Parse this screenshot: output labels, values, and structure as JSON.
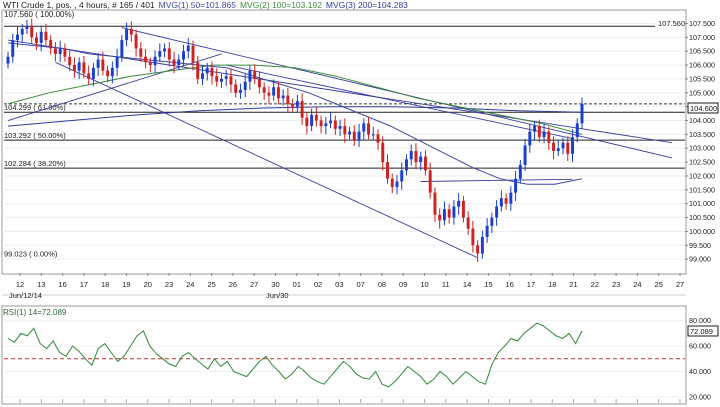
{
  "header": {
    "title": "WTI Crude 1, pos. , 4 hours, # 165 / 401",
    "mvg1": "MVG(1) 50=101.865",
    "mvg2": "MVG(2) 100=103.192",
    "mvg3": "MVG(3) 200=104.283",
    "fib_top": "107.560 ( 100.00%)",
    "top_right_label": "107.560"
  },
  "colors": {
    "candle_up": "#1a3fd0",
    "candle_down": "#d02020",
    "mvg1": "#3d47a8",
    "mvg2": "#3c8a3c",
    "mvg3": "#2e3a9e",
    "trendline": "#3a3f9e",
    "hline": "#222222",
    "rsi_line": "#2f8a3a",
    "rsi_mid": "#c03030",
    "current_box": "#1a1a1a"
  },
  "chart_data": [
    {
      "type": "candlestick",
      "title": "",
      "timeframe": "4 hours",
      "ylim": [
        98.5,
        107.95
      ],
      "y_ticks": [
        "99.000",
        "99.500",
        "100.000",
        "100.500",
        "101.000",
        "101.500",
        "102.000",
        "102.500",
        "103.000",
        "103.500",
        "104.000",
        "104.500",
        "105.000",
        "105.500",
        "106.000",
        "106.500",
        "107.000",
        "107.500"
      ],
      "x_ticks": [
        "12",
        "13",
        "16",
        "17",
        "18",
        "19",
        "20",
        "23",
        "24",
        "25",
        "26",
        "27",
        "30",
        "01",
        "02",
        "03",
        "07",
        "08",
        "09",
        "10",
        "11",
        "14",
        "15",
        "16",
        "17",
        "18",
        "21",
        "22",
        "23",
        "24",
        "25",
        "27"
      ],
      "date_labels": [
        "Jun/12/14",
        "Jun/30"
      ],
      "current_price": "104.600",
      "fibonacci": [
        {
          "label": "107.560 ( 100.00%)",
          "value": 107.56
        },
        {
          "label": "104.299 ( 61.80%)",
          "value": 104.299
        },
        {
          "label": "103.292 ( 50.00%)",
          "value": 103.292
        },
        {
          "label": "102.284 ( 38.20%)",
          "value": 102.284
        },
        {
          "label": "99.023 ( 0.00%)",
          "value": 99.023
        }
      ],
      "horizontal_lines": [
        107.4,
        104.299,
        103.292,
        102.284
      ],
      "dashed_line": 104.6,
      "closes": [
        106.3,
        106.9,
        107.1,
        107.3,
        107.4,
        107.0,
        106.8,
        107.2,
        106.9,
        106.6,
        106.4,
        106.6,
        106.3,
        106.0,
        105.8,
        106.1,
        105.7,
        105.5,
        105.9,
        106.2,
        105.8,
        105.6,
        105.9,
        106.3,
        106.9,
        107.3,
        107.1,
        106.6,
        106.3,
        106.1,
        106.0,
        106.3,
        106.5,
        106.6,
        106.2,
        106.0,
        106.2,
        106.5,
        106.7,
        106.1,
        105.5,
        105.7,
        105.9,
        105.6,
        105.4,
        105.5,
        105.6,
        105.3,
        105.0,
        105.1,
        105.4,
        105.8,
        105.5,
        105.2,
        105.0,
        104.9,
        105.2,
        104.8,
        104.9,
        104.6,
        104.5,
        104.7,
        104.1,
        103.8,
        104.2,
        104.0,
        103.8,
        103.9,
        104.0,
        103.7,
        103.8,
        103.5,
        103.6,
        103.3,
        103.6,
        103.9,
        103.5,
        103.5,
        103.2,
        102.5,
        101.9,
        101.6,
        101.8,
        102.2,
        102.6,
        102.9,
        102.5,
        102.7,
        102.2,
        101.4,
        100.6,
        100.4,
        100.8,
        100.5,
        100.9,
        101.1,
        100.5,
        100.1,
        99.5,
        99.2,
        99.8,
        100.2,
        100.5,
        100.9,
        101.2,
        101.0,
        101.4,
        101.9,
        102.4,
        103.1,
        103.6,
        103.8,
        103.4,
        103.6,
        103.2,
        102.9,
        103.0,
        103.2,
        102.8,
        103.4,
        103.9,
        104.6
      ],
      "mvg1_50": [
        106.8,
        106.7,
        106.6,
        106.4,
        106.3,
        106.2,
        106.1,
        106.0,
        105.9,
        105.6,
        105.3,
        105.0,
        104.6,
        104.2,
        103.8,
        103.3,
        102.8,
        102.3,
        101.9,
        101.7,
        101.7,
        101.9
      ],
      "mvg2_100": [
        104.6,
        105.0,
        105.3,
        105.6,
        105.8,
        106.0,
        106.0,
        105.9,
        105.6,
        105.2,
        104.8,
        104.5,
        104.2,
        103.9,
        103.5
      ],
      "mvg3_200": [
        103.8,
        104.0,
        104.2,
        104.35,
        104.45,
        104.5,
        104.5,
        104.45,
        104.35,
        104.3
      ]
    },
    {
      "type": "line",
      "title": "",
      "label": "RSI(1) 14=72.089",
      "current_value": "72.089",
      "ylim": [
        16,
        90
      ],
      "y_ticks": [
        "80.000",
        "60.000",
        "40.000",
        "20.000"
      ],
      "midline": 50,
      "values": [
        66,
        63,
        70,
        68,
        74,
        62,
        58,
        64,
        55,
        52,
        60,
        56,
        50,
        45,
        58,
        62,
        55,
        48,
        52,
        60,
        68,
        72,
        60,
        54,
        50,
        46,
        44,
        52,
        55,
        50,
        46,
        42,
        50,
        44,
        48,
        40,
        38,
        36,
        42,
        48,
        52,
        45,
        40,
        34,
        38,
        44,
        40,
        35,
        32,
        30,
        36,
        42,
        48,
        44,
        38,
        35,
        34,
        40,
        30,
        28,
        32,
        38,
        44,
        40,
        36,
        30,
        34,
        40,
        36,
        30,
        35,
        40,
        36,
        32,
        30,
        45,
        55,
        60,
        66,
        64,
        70,
        74,
        78,
        76,
        72,
        68,
        66,
        70,
        62,
        72
      ]
    }
  ]
}
